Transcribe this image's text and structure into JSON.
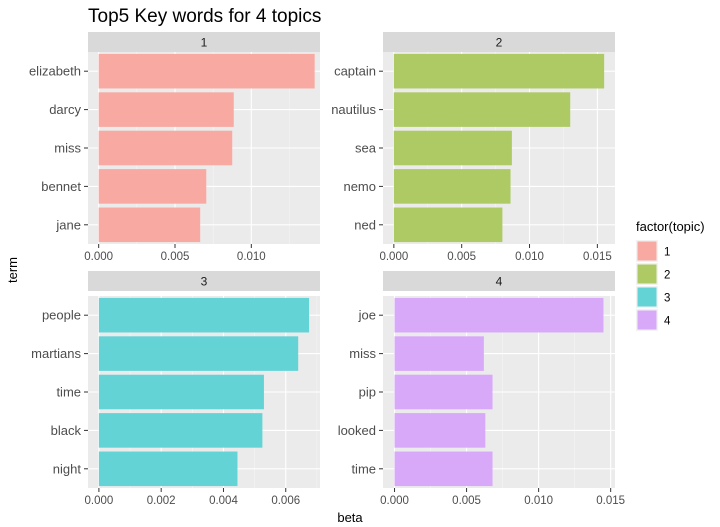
{
  "chart_data": {
    "type": "bar",
    "orientation": "horizontal",
    "title": "Top5 Key words for 4 topics",
    "xlabel": "beta",
    "ylabel": "term",
    "legend": {
      "title": "factor(topic)",
      "position": "right",
      "entries": [
        {
          "label": "1",
          "color": "#F8A9A2"
        },
        {
          "label": "2",
          "color": "#AECA65"
        },
        {
          "label": "3",
          "color": "#64D3D6"
        },
        {
          "label": "4",
          "color": "#D7A9F8"
        }
      ]
    },
    "grid": true,
    "facets": [
      {
        "strip": "1",
        "color": "#F8A9A2",
        "categories": [
          "elizabeth",
          "darcy",
          "miss",
          "bennet",
          "jane"
        ],
        "values": [
          0.01415,
          0.00885,
          0.00875,
          0.00705,
          0.00665
        ],
        "xlim": [
          -0.0007,
          0.0145
        ],
        "xticks": [
          0,
          0.005,
          0.01
        ],
        "xtick_labels": [
          "0.000",
          "0.005",
          "0.010"
        ]
      },
      {
        "strip": "2",
        "color": "#AECA65",
        "categories": [
          "captain",
          "nautilus",
          "sea",
          "nemo",
          "ned"
        ],
        "values": [
          0.0155,
          0.013,
          0.0087,
          0.0086,
          0.008
        ],
        "xlim": [
          -0.0008,
          0.0163
        ],
        "xticks": [
          0,
          0.005,
          0.01,
          0.015
        ],
        "xtick_labels": [
          "0.000",
          "0.005",
          "0.010",
          "0.015"
        ]
      },
      {
        "strip": "3",
        "color": "#64D3D6",
        "categories": [
          "people",
          "martians",
          "time",
          "black",
          "night"
        ],
        "values": [
          0.00675,
          0.0064,
          0.0053,
          0.00525,
          0.00445
        ],
        "xlim": [
          -0.00035,
          0.0071
        ],
        "xticks": [
          0,
          0.002,
          0.004,
          0.006
        ],
        "xtick_labels": [
          "0.000",
          "0.002",
          "0.004",
          "0.006"
        ]
      },
      {
        "strip": "4",
        "color": "#D7A9F8",
        "categories": [
          "joe",
          "miss",
          "pip",
          "looked",
          "time"
        ],
        "values": [
          0.0145,
          0.0062,
          0.0068,
          0.0063,
          0.0068
        ],
        "xlim": [
          -0.0008,
          0.0153
        ],
        "xticks": [
          0,
          0.005,
          0.01,
          0.015
        ],
        "xtick_labels": [
          "0.000",
          "0.005",
          "0.010",
          "0.015"
        ]
      }
    ]
  }
}
